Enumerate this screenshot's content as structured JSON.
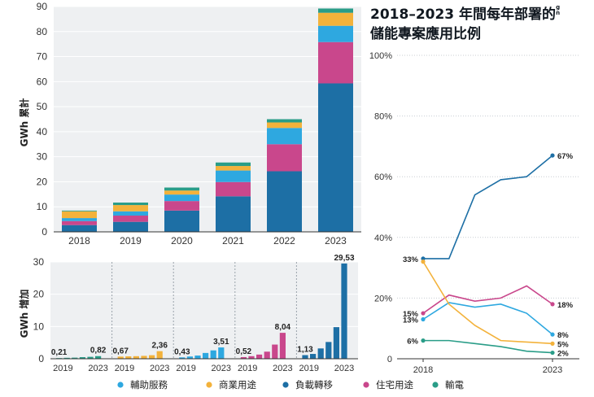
{
  "title": {
    "line1": "2018–2023 年間每年部署的",
    "line1_superscript": "g\nn",
    "line2": "儲能專案應用比例"
  },
  "legend": [
    {
      "label": "輔助服務",
      "color": "#2ea8e0"
    },
    {
      "label": "商業用途",
      "color": "#f3b23b"
    },
    {
      "label": "負載轉移",
      "color": "#1d6fa5"
    },
    {
      "label": "住宅用途",
      "color": "#c9478c"
    },
    {
      "label": "輸電",
      "color": "#2a9d88"
    }
  ],
  "chart_data": [
    {
      "type": "bar",
      "stacked": true,
      "categories": [
        "2018",
        "2019",
        "2020",
        "2021",
        "2022",
        "2023"
      ],
      "ylabel": "GWh 累計",
      "ylim": [
        0,
        90
      ],
      "yticks": [
        0,
        10,
        20,
        30,
        40,
        50,
        60,
        70,
        80,
        90
      ],
      "series": [
        {
          "name": "負載轉移",
          "color": "#1d6fa5",
          "values": [
            2.7,
            4.0,
            8.5,
            14.2,
            24.2,
            59.3
          ]
        },
        {
          "name": "住宅用途",
          "color": "#c9478c",
          "values": [
            1.6,
            2.5,
            3.8,
            5.7,
            10.8,
            16.5
          ]
        },
        {
          "name": "輔助服務",
          "color": "#2ea8e0",
          "values": [
            1.2,
            1.7,
            2.6,
            4.6,
            6.5,
            6.5
          ]
        },
        {
          "name": "商業用途",
          "color": "#f3b23b",
          "values": [
            2.7,
            2.5,
            1.6,
            1.8,
            2.2,
            5.2
          ]
        },
        {
          "name": "輸電",
          "color": "#2a9d88",
          "values": [
            0.3,
            1.0,
            1.2,
            1.4,
            1.3,
            1.7
          ]
        }
      ]
    },
    {
      "type": "bar",
      "ylabel": "GWh 增加",
      "ylim": [
        0,
        30
      ],
      "yticks": [
        0,
        10,
        20,
        30
      ],
      "year_labels": [
        "2019",
        "2023"
      ],
      "groups": [
        {
          "name": "輸電",
          "color": "#2a9d88",
          "values": [
            0.21,
            0.3,
            0.35,
            0.5,
            0.6,
            0.82
          ],
          "first_label": "0,21",
          "last_label": "0,82"
        },
        {
          "name": "商業用途",
          "color": "#f3b23b",
          "values": [
            0.67,
            0.75,
            0.8,
            0.9,
            1.1,
            2.36
          ],
          "first_label": "0,67",
          "last_label": "2,36"
        },
        {
          "name": "輔助服務",
          "color": "#2ea8e0",
          "values": [
            0.43,
            0.7,
            1.0,
            1.8,
            2.6,
            3.51
          ],
          "first_label": "0,43",
          "last_label": "3,51"
        },
        {
          "name": "住宅用途",
          "color": "#c9478c",
          "values": [
            0.52,
            0.8,
            1.3,
            2.2,
            4.4,
            8.04
          ],
          "first_label": "0,52",
          "last_label": "8,04"
        },
        {
          "name": "負載轉移",
          "color": "#1d6fa5",
          "values": [
            1.13,
            1.5,
            3.2,
            5.2,
            9.8,
            29.53
          ],
          "first_label": "1,13",
          "last_label": "29,53"
        }
      ]
    },
    {
      "type": "line",
      "x": [
        2018,
        2018.2,
        2018.4,
        2018.6,
        2018.8,
        2019
      ],
      "xticks": [
        "2018",
        "2023"
      ],
      "ylim": [
        0,
        100
      ],
      "yticks": [
        "0",
        "20%",
        "40%",
        "60%",
        "80%",
        "100%"
      ],
      "series": [
        {
          "name": "負載轉移",
          "color": "#1d6fa5",
          "values": [
            33,
            33,
            54,
            59,
            60,
            67
          ],
          "start_label": "33%",
          "end_label": "67%"
        },
        {
          "name": "住宅用途",
          "color": "#c9478c",
          "values": [
            15,
            21,
            19,
            20,
            24,
            18
          ],
          "start_label": "15%",
          "end_label": "18%"
        },
        {
          "name": "輔助服務",
          "color": "#2ea8e0",
          "values": [
            13,
            18.5,
            17,
            18,
            15,
            8
          ],
          "start_label": "13%",
          "end_label": "8%"
        },
        {
          "name": "商業用途",
          "color": "#f3b23b",
          "values": [
            32,
            18,
            11,
            6,
            5.5,
            5
          ],
          "start_label": "",
          "end_label": "5%"
        },
        {
          "name": "輸電",
          "color": "#2a9d88",
          "values": [
            6,
            6,
            5,
            4,
            2.5,
            2
          ],
          "start_label": "6%",
          "end_label": "2%"
        }
      ]
    }
  ]
}
